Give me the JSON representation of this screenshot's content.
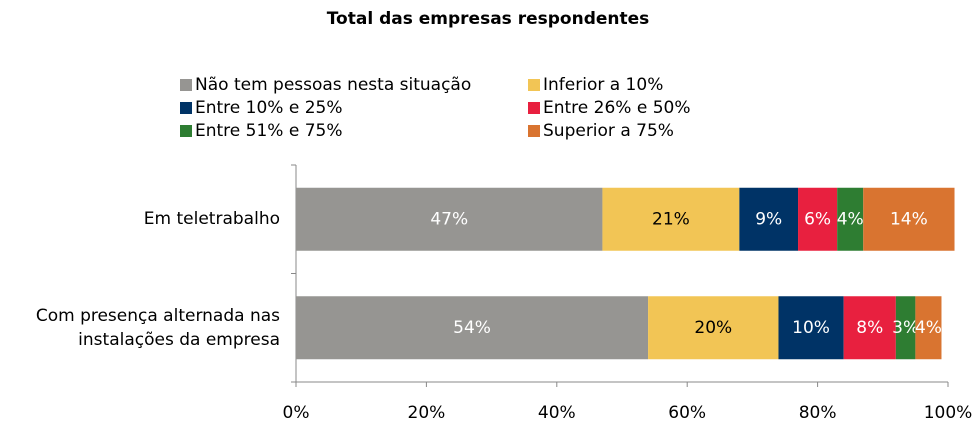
{
  "chart_data": {
    "type": "stacked_barh",
    "title": "Total das empresas respondentes",
    "categories": [
      "Em teletrabalho",
      "Com presença alternada nas instalações da empresa"
    ],
    "series": [
      {
        "name": "Não tem pessoas nesta situação",
        "color": "#969592",
        "values": [
          47,
          54
        ],
        "value_labels": [
          "47%",
          "54%"
        ]
      },
      {
        "name": "Inferior a 10%",
        "color": "#f2c555",
        "values": [
          21,
          20
        ],
        "value_labels": [
          "21%",
          "20%"
        ]
      },
      {
        "name": "Entre 10% e 25%",
        "color": "#003366",
        "values": [
          9,
          10
        ],
        "value_labels": [
          "9%",
          "10%"
        ]
      },
      {
        "name": "Entre 26% e 50%",
        "color": "#e8203f",
        "values": [
          6,
          8
        ],
        "value_labels": [
          "6%",
          "8%"
        ]
      },
      {
        "name": "Entre 51% e 75%",
        "color": "#2e7d32",
        "values": [
          4,
          3
        ],
        "value_labels": [
          "4%",
          "3%"
        ]
      },
      {
        "name": "Superior a 75%",
        "color": "#d97430",
        "values": [
          14,
          4
        ],
        "value_labels": [
          "14%",
          "4%"
        ]
      }
    ],
    "xlim": [
      0,
      100
    ],
    "xticks": [
      {
        "value": 0,
        "label": "0%"
      },
      {
        "value": 20,
        "label": "20%"
      },
      {
        "value": 40,
        "label": "40%"
      },
      {
        "value": 60,
        "label": "60%"
      },
      {
        "value": 80,
        "label": "80%"
      },
      {
        "value": 100,
        "label": "100%"
      }
    ]
  }
}
